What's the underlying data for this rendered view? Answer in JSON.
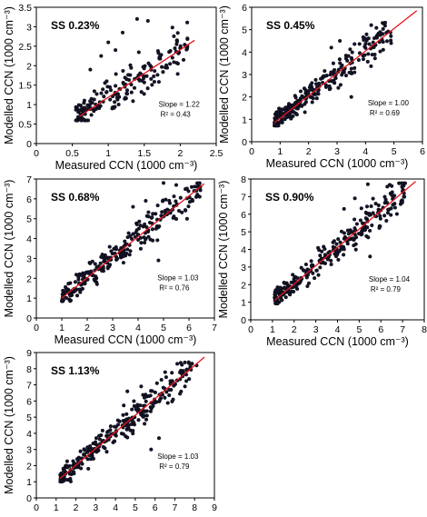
{
  "chart_data": [
    {
      "type": "scatter",
      "title": "SS 0.23%",
      "xlabel": "Measured CCN (1000 cm⁻³)",
      "ylabel": "Modelled CCN (1000 cm⁻³)",
      "xlim": [
        0,
        2.5
      ],
      "ylim": [
        0,
        3.5
      ],
      "xticks": [
        "0",
        "0.5",
        "1",
        "1.5",
        "2",
        "2.5"
      ],
      "yticks": [
        "0",
        "0.5",
        "1",
        "1.5",
        "2",
        "2.5",
        "3",
        "3.5"
      ],
      "slope_text": "Slope = 1.22",
      "r2_text": "R² = 0.43",
      "fit": {
        "x0": 0.6,
        "x1": 2.2,
        "slope": 1.22,
        "y_at_x0": 0.7
      },
      "series": [
        {
          "xmin": 0.55,
          "xmax": 2.1,
          "n": 190,
          "spread": 0.35,
          "outliers": [
            [
              1.4,
              3.2
            ],
            [
              1.55,
              3.15
            ],
            [
              1.2,
              2.85
            ],
            [
              1.0,
              2.6
            ],
            [
              1.1,
              2.4
            ],
            [
              0.9,
              2.25
            ],
            [
              2.1,
              2.7
            ],
            [
              1.95,
              2.55
            ],
            [
              0.75,
              1.9
            ]
          ]
        }
      ]
    },
    {
      "type": "scatter",
      "title": "SS 0.45%",
      "xlabel": "Measured CCN (1000 cm⁻³)",
      "ylabel": "Modelled CCN (1000 cm⁻³)",
      "xlim": [
        0,
        6
      ],
      "ylim": [
        0,
        6
      ],
      "xticks": [
        "0",
        "1",
        "2",
        "3",
        "4",
        "5",
        "6"
      ],
      "yticks": [
        "0",
        "1",
        "2",
        "3",
        "4",
        "5",
        "6"
      ],
      "slope_text": "Slope = 1.00",
      "r2_text": "R² = 0.69",
      "fit": {
        "x0": 0.8,
        "x1": 5.8,
        "slope": 1.0,
        "y_at_x0": 0.85
      },
      "series": [
        {
          "xmin": 0.8,
          "xmax": 4.9,
          "n": 260,
          "spread": 0.45,
          "outliers": [
            [
              4.2,
              5.2
            ],
            [
              4.6,
              5.3
            ],
            [
              3.1,
              4.5
            ],
            [
              2.8,
              4.2
            ],
            [
              4.9,
              4.4
            ],
            [
              3.5,
              2.0
            ]
          ]
        }
      ]
    },
    {
      "type": "scatter",
      "title": "SS 0.68%",
      "xlabel": "Measured CCN (1000 cm⁻³)",
      "ylabel": "Modelled CCN (1000 cm⁻³)",
      "xlim": [
        0,
        7
      ],
      "ylim": [
        0,
        7
      ],
      "xticks": [
        "0",
        "1",
        "2",
        "3",
        "4",
        "5",
        "6",
        "7"
      ],
      "yticks": [
        "0",
        "1",
        "2",
        "3",
        "4",
        "5",
        "6",
        "7"
      ],
      "slope_text": "Slope = 1.03",
      "r2_text": "R² = 0.76",
      "fit": {
        "x0": 1.0,
        "x1": 6.6,
        "slope": 1.03,
        "y_at_x0": 1.0
      },
      "series": [
        {
          "xmin": 1.0,
          "xmax": 6.5,
          "n": 260,
          "spread": 0.5,
          "outliers": [
            [
              5.0,
              6.8
            ],
            [
              5.5,
              6.7
            ],
            [
              4.3,
              5.9
            ],
            [
              3.8,
              5.6
            ],
            [
              6.2,
              6.4
            ],
            [
              4.8,
              2.9
            ]
          ]
        }
      ]
    },
    {
      "type": "scatter",
      "title": "SS 0.90%",
      "xlabel": "Measured CCN (1000 cm⁻³)",
      "ylabel": "Modelled CCN (1000 cm⁻³)",
      "xlim": [
        0,
        8
      ],
      "ylim": [
        0,
        8
      ],
      "xticks": [
        "0",
        "1",
        "2",
        "3",
        "4",
        "5",
        "6",
        "7",
        "8"
      ],
      "yticks": [
        "0",
        "1",
        "2",
        "3",
        "4",
        "5",
        "6",
        "7",
        "8"
      ],
      "slope_text": "Slope = 1.04",
      "r2_text": "R² = 0.79",
      "fit": {
        "x0": 1.1,
        "x1": 7.6,
        "slope": 1.04,
        "y_at_x0": 1.1
      },
      "series": [
        {
          "xmin": 1.1,
          "xmax": 7.2,
          "n": 280,
          "spread": 0.55,
          "outliers": [
            [
              5.4,
              7.7
            ],
            [
              6.5,
              7.6
            ],
            [
              4.8,
              6.9
            ],
            [
              4.3,
              6.3
            ],
            [
              7.0,
              7.3
            ],
            [
              5.5,
              3.6
            ]
          ]
        }
      ]
    },
    {
      "type": "scatter",
      "title": "SS 1.13%",
      "xlabel": "Measured CCN (1000 cm⁻³)",
      "ylabel": "Modelled CCN (1000 cm⁻³)",
      "xlim": [
        0,
        9
      ],
      "ylim": [
        0,
        9
      ],
      "xticks": [
        "0",
        "1",
        "2",
        "3",
        "4",
        "5",
        "6",
        "7",
        "8",
        "9"
      ],
      "yticks": [
        "0",
        "1",
        "2",
        "3",
        "4",
        "5",
        "6",
        "7",
        "8",
        "9"
      ],
      "slope_text": "Slope = 1.03",
      "r2_text": "R² = 0.79",
      "fit": {
        "x0": 1.2,
        "x1": 8.5,
        "slope": 1.03,
        "y_at_x0": 1.2
      },
      "series": [
        {
          "xmin": 1.2,
          "xmax": 8.0,
          "n": 280,
          "spread": 0.6,
          "outliers": [
            [
              7.7,
              8.4
            ],
            [
              8.1,
              8.2
            ],
            [
              5.3,
              6.9
            ],
            [
              4.6,
              6.6
            ],
            [
              6.1,
              7.1
            ],
            [
              6.2,
              3.7
            ],
            [
              5.8,
              3.0
            ]
          ]
        }
      ]
    }
  ]
}
